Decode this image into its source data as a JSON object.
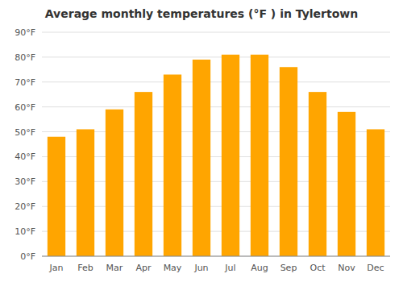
{
  "chart_data": {
    "type": "bar",
    "title": "Average monthly temperatures (°F ) in Tylertown",
    "categories": [
      "Jan",
      "Feb",
      "Mar",
      "Apr",
      "May",
      "Jun",
      "Jul",
      "Aug",
      "Sep",
      "Oct",
      "Nov",
      "Dec"
    ],
    "values": [
      48,
      51,
      59,
      66,
      73,
      79,
      81,
      81,
      76,
      66,
      58,
      51
    ],
    "color": "#FFA500",
    "ylim": [
      0,
      90
    ],
    "yticks": [
      {
        "value": 0,
        "label": "0°F"
      },
      {
        "value": 10,
        "label": "10°F"
      },
      {
        "value": 20,
        "label": "20°F"
      },
      {
        "value": 30,
        "label": "30°F"
      },
      {
        "value": 40,
        "label": "40°F"
      },
      {
        "value": 50,
        "label": "50°F"
      },
      {
        "value": 60,
        "label": "60°F"
      },
      {
        "value": 70,
        "label": "70°F"
      },
      {
        "value": 80,
        "label": "80°F"
      },
      {
        "value": 90,
        "label": "90°F"
      }
    ],
    "grid": true
  }
}
